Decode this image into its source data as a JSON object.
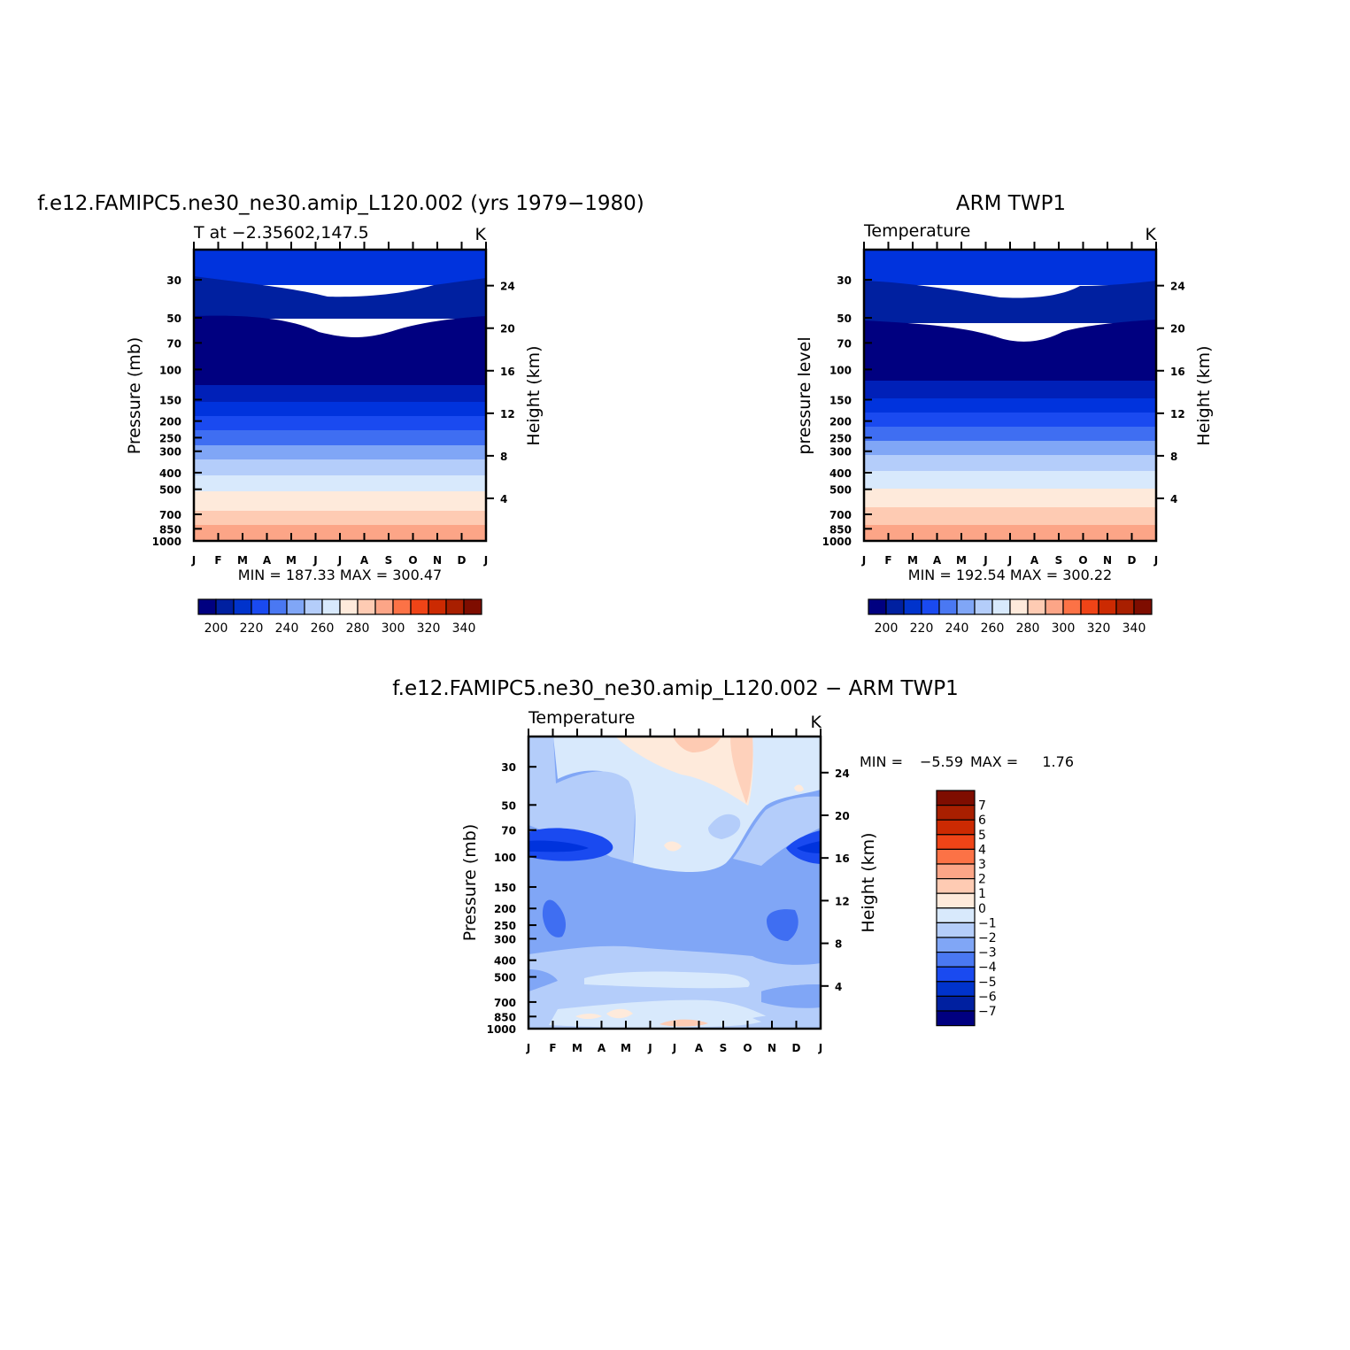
{
  "chart_data": [
    {
      "type": "contour",
      "title": "f.e12.FAMIPC5.ne30_ne30.amip_L120.002 (yrs 1979−1980)",
      "subtitle_left": "T at −2.35602,147.5",
      "subtitle_right": "K",
      "ylabel": "Pressure (mb)",
      "y2label": "Height (km)",
      "stats": "MIN = 187.33 MAX = 300.47",
      "months": [
        "J",
        "F",
        "M",
        "A",
        "M",
        "J",
        "J",
        "A",
        "S",
        "O",
        "N",
        "D",
        "J"
      ],
      "pressure_ticks": [
        "30",
        "50",
        "70",
        "100",
        "150",
        "200",
        "250",
        "300",
        "400",
        "500",
        "700",
        "850",
        "1000"
      ],
      "height_ticks": [
        "24",
        "20",
        "16",
        "12",
        "8",
        "4"
      ],
      "colorbar_labels": [
        "200",
        "220",
        "240",
        "260",
        "280",
        "300",
        "320",
        "340"
      ],
      "colors": [
        "#000080",
        "#0020a0",
        "#0033cc",
        "#1a4af0",
        "#4a78f2",
        "#80a6f6",
        "#b4cdfa",
        "#d8e9fc",
        "#feeadb",
        "#fecbb3",
        "#fca587",
        "#fc7246",
        "#ef4417",
        "#cc2a02",
        "#a81f00",
        "#7e0d00"
      ],
      "contour_levels": [
        190,
        200,
        210,
        220,
        230,
        240,
        250,
        260,
        270,
        280,
        290,
        300,
        310,
        320,
        330,
        340,
        350
      ]
    },
    {
      "type": "contour",
      "title": "ARM TWP1",
      "subtitle_left": "Temperature",
      "subtitle_right": "K",
      "ylabel": "pressure level",
      "y2label": "Height (km)",
      "stats": "MIN = 192.54 MAX = 300.22",
      "months": [
        "J",
        "F",
        "M",
        "A",
        "M",
        "J",
        "J",
        "A",
        "S",
        "O",
        "N",
        "D",
        "J"
      ],
      "pressure_ticks": [
        "30",
        "50",
        "70",
        "100",
        "150",
        "200",
        "250",
        "300",
        "400",
        "500",
        "700",
        "850",
        "1000"
      ],
      "height_ticks": [
        "24",
        "20",
        "16",
        "12",
        "8",
        "4"
      ],
      "colorbar_labels": [
        "200",
        "220",
        "240",
        "260",
        "280",
        "300",
        "320",
        "340"
      ],
      "colors": [
        "#000080",
        "#0020a0",
        "#0033cc",
        "#1a4af0",
        "#4a78f2",
        "#80a6f6",
        "#b4cdfa",
        "#d8e9fc",
        "#feeadb",
        "#fecbb3",
        "#fca587",
        "#fc7246",
        "#ef4417",
        "#cc2a02",
        "#a81f00",
        "#7e0d00"
      ]
    },
    {
      "type": "contour",
      "title": "f.e12.FAMIPC5.ne30_ne30.amip_L120.002 − ARM TWP1",
      "subtitle_left": "Temperature",
      "subtitle_right": "K",
      "ylabel": "Pressure (mb)",
      "y2label": "Height (km)",
      "stats": {
        "min_label": "MIN =",
        "min": "−5.59",
        "max_label": "MAX =",
        "max": "1.76"
      },
      "months": [
        "J",
        "F",
        "M",
        "A",
        "M",
        "J",
        "J",
        "A",
        "S",
        "O",
        "N",
        "D",
        "J"
      ],
      "pressure_ticks": [
        "30",
        "50",
        "70",
        "100",
        "150",
        "200",
        "250",
        "300",
        "400",
        "500",
        "700",
        "850",
        "1000"
      ],
      "height_ticks": [
        "24",
        "20",
        "16",
        "12",
        "8",
        "4"
      ],
      "colorbar_labels": [
        "7",
        "6",
        "5",
        "4",
        "3",
        "2",
        "1",
        "0",
        "−1",
        "−2",
        "−3",
        "−4",
        "−5",
        "−6",
        "−7"
      ],
      "colors": [
        "#000080",
        "#0020a0",
        "#0033cc",
        "#1a4af0",
        "#4a78f2",
        "#80a6f6",
        "#b4cdfa",
        "#d8e9fc",
        "#feeadb",
        "#fecbb3",
        "#fca587",
        "#fc7246",
        "#ef4417",
        "#cc2a02",
        "#a81f00",
        "#7e0d00"
      ],
      "contour_levels": [
        -8,
        -7,
        -6,
        -5,
        -4,
        -3,
        -2,
        -1,
        0,
        1,
        2,
        3,
        4,
        5,
        6,
        7,
        8
      ]
    }
  ]
}
